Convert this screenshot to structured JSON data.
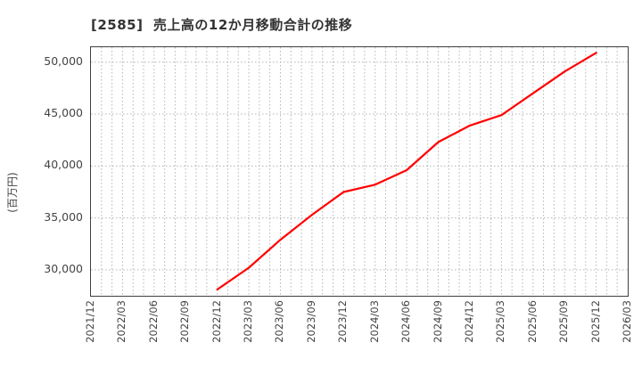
{
  "title": "[2585]  売上高の12か月移動合計の推移",
  "y_axis_label": "(百万円)",
  "chart_data": {
    "type": "line",
    "title": "[2585]  売上高の12か月移動合計の推移",
    "xlabel": "",
    "ylabel": "(百万円)",
    "legend": "none",
    "grid": {
      "vertical": "monthly dotted",
      "horizontal": "every 5000 dotted"
    },
    "x_range": [
      "2021/12",
      "2026/03"
    ],
    "ylim": [
      27500,
      51440
    ],
    "y_tick_values": [
      30000,
      35000,
      40000,
      45000,
      50000
    ],
    "x_tick_labels": [
      "2021/12",
      "2022/03",
      "2022/06",
      "2022/09",
      "2022/12",
      "2023/03",
      "2023/06",
      "2023/09",
      "2023/12",
      "2024/03",
      "2024/06",
      "2024/09",
      "2024/12",
      "2025/03",
      "2025/06",
      "2025/09",
      "2025/12",
      "2026/03"
    ],
    "series": [
      {
        "name": "売上高の12か月移動合計",
        "color": "#ff0000",
        "x": [
          "2022/12",
          "2023/03",
          "2023/06",
          "2023/09",
          "2023/12",
          "2024/03",
          "2024/06",
          "2024/09",
          "2024/12",
          "2025/03",
          "2025/06",
          "2025/09",
          "2025/12"
        ],
        "values": [
          28100,
          30200,
          32900,
          35300,
          37500,
          38200,
          39600,
          42300,
          43900,
          44900,
          47000,
          49100,
          50900
        ]
      }
    ]
  },
  "colors": {
    "line": "#ff0000",
    "grid": "#b5b5b5",
    "frame": "#3f3f3f",
    "title_text": "#333333",
    "tick_text": "#444444"
  }
}
